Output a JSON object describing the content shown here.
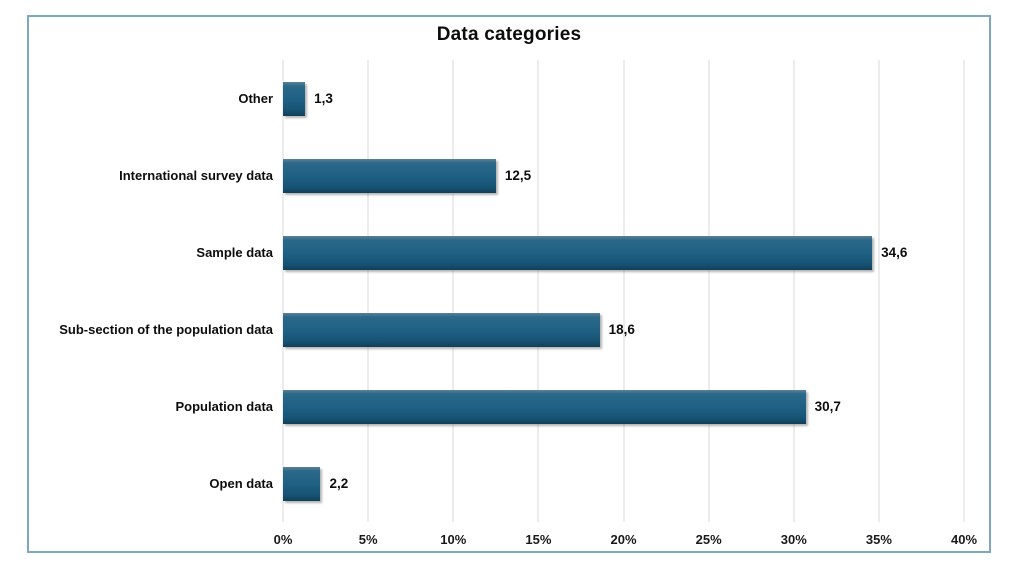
{
  "page": {
    "background_color": "#ffffff",
    "frame_border_color": "#7fa7bf"
  },
  "chart_data": {
    "type": "bar",
    "orientation": "horizontal",
    "title": "Data categories",
    "categories": [
      "Other",
      "International survey data",
      "Sample data",
      "Sub-section of the population data",
      "Population data",
      "Open data"
    ],
    "values": [
      1.3,
      12.5,
      34.6,
      18.6,
      30.7,
      2.2
    ],
    "value_labels": [
      "1,3",
      "12,5",
      "34,6",
      "18,6",
      "30,7",
      "2,2"
    ],
    "xlabel": "",
    "ylabel": "",
    "xlim": [
      0,
      40
    ],
    "tick_values": [
      0,
      5,
      10,
      15,
      20,
      25,
      30,
      35,
      40
    ],
    "tick_labels": [
      "0%",
      "5%",
      "10%",
      "15%",
      "20%",
      "25%",
      "30%",
      "35%",
      "40%"
    ],
    "grid": "vertical",
    "legend": "none",
    "gridline_color": "#d9d9d9",
    "bar_color": "#1f6083",
    "bar_gradient": [
      "#5b8096",
      "#2b6888",
      "#1f6184",
      "#175374",
      "#123f58"
    ],
    "text_color": "#0d0d0d"
  }
}
